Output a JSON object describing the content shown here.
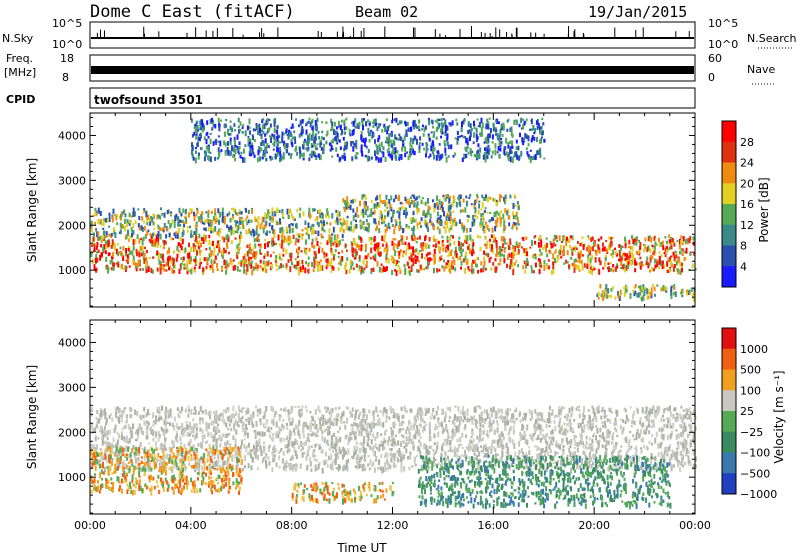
{
  "header": {
    "station": "Dome C East (fitACF)",
    "beam": "Beam 02",
    "date": "19/Jan/2015"
  },
  "strip_labels": {
    "nsky": "N.Sky",
    "nsky_ticks": [
      "10^5",
      "10^0"
    ],
    "nsearch": "N.Search",
    "nsearch_ticks": [
      "10^5",
      "10^0"
    ],
    "freq_line1": "Freq.",
    "freq_line2": "[MHz]",
    "freq_ticks": [
      "18",
      "8"
    ],
    "nave": "Nave",
    "nave_ticks": [
      "60",
      "0"
    ],
    "cpid": "CPID",
    "cpid_value": "twofsound 3501"
  },
  "chart_data": [
    {
      "type": "heatmap",
      "panel": "power",
      "ylabel": "Slant Range [km]",
      "xlabel": "",
      "x_ticks": [
        "00:00",
        "04:00",
        "08:00",
        "12:00",
        "16:00",
        "20:00",
        "00:00"
      ],
      "y_ticks": [
        1000,
        2000,
        3000,
        4000
      ],
      "ylim": [
        180,
        4500
      ],
      "xlim_hours": [
        0,
        24
      ],
      "colorbar": {
        "label": "Power [dB]",
        "ticks": [
          "4",
          "8",
          "12",
          "16",
          "20",
          "24",
          "28"
        ],
        "colors": [
          "#1a1aff",
          "#2a4fb0",
          "#3a8a8a",
          "#55aa55",
          "#e0d020",
          "#f08a10",
          "#e03010",
          "#ff0000"
        ]
      },
      "bands": [
        {
          "x": [
            0,
            24
          ],
          "y": [
            1000,
            1800
          ],
          "level": "high"
        },
        {
          "x": [
            0,
            10
          ],
          "y": [
            1800,
            2400
          ],
          "level": "medium"
        },
        {
          "x": [
            10,
            17
          ],
          "y": [
            1900,
            2700
          ],
          "level": "medium"
        },
        {
          "x": [
            4,
            18
          ],
          "y": [
            3500,
            4400
          ],
          "level": "low"
        },
        {
          "x": [
            20,
            24
          ],
          "y": [
            400,
            700
          ],
          "level": "medium"
        }
      ]
    },
    {
      "type": "heatmap",
      "panel": "velocity",
      "ylabel": "Slant Range [km]",
      "xlabel": "Time UT",
      "x_ticks": [
        "00:00",
        "04:00",
        "08:00",
        "12:00",
        "16:00",
        "20:00",
        "00:00"
      ],
      "y_ticks": [
        1000,
        2000,
        3000,
        4000
      ],
      "ylim": [
        180,
        4500
      ],
      "xlim_hours": [
        0,
        24
      ],
      "colorbar": {
        "label": "Velocity [m s⁻¹]",
        "ticks": [
          "1000",
          "500",
          "100",
          "25",
          "−25",
          "−100",
          "−500",
          "−1000"
        ],
        "colors": [
          "#2040c0",
          "#3a78b0",
          "#3a8a60",
          "#55aa55",
          "#c8c8c0",
          "#f0a020",
          "#f06010",
          "#e01010"
        ]
      },
      "bands": [
        {
          "x": [
            0,
            24
          ],
          "y": [
            1200,
            2600
          ],
          "level": "gray"
        },
        {
          "x": [
            13,
            23
          ],
          "y": [
            400,
            1500
          ],
          "level": "green"
        },
        {
          "x": [
            0,
            6
          ],
          "y": [
            700,
            1700
          ],
          "level": "orange"
        },
        {
          "x": [
            8,
            12
          ],
          "y": [
            500,
            900
          ],
          "level": "orange"
        }
      ]
    }
  ]
}
